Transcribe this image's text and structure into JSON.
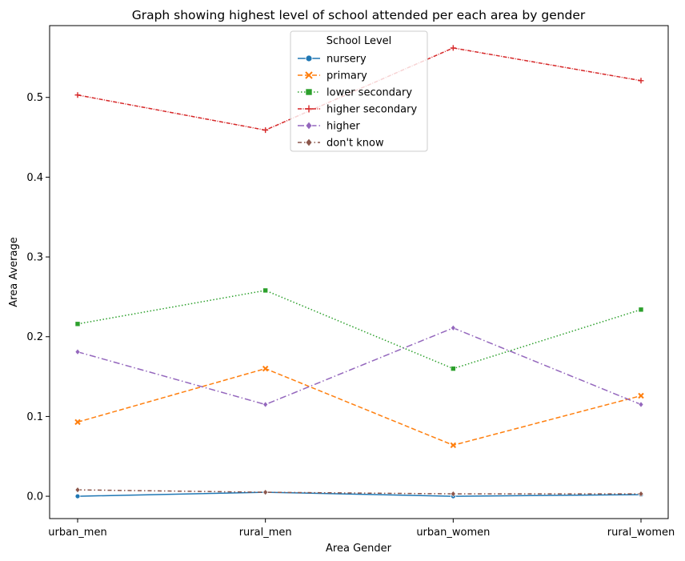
{
  "chart_data": {
    "type": "line",
    "title": "Graph showing highest level of school attended per each area by gender",
    "xlabel": "Area Gender",
    "ylabel": "Area Average",
    "categories": [
      "urban_men",
      "rural_men",
      "urban_women",
      "rural_women"
    ],
    "ylim": [
      -0.028,
      0.59
    ],
    "yticks": [
      0.0,
      0.1,
      0.2,
      0.3,
      0.4,
      0.5
    ],
    "ytick_labels": [
      "0.0",
      "0.1",
      "0.2",
      "0.3",
      "0.4",
      "0.5"
    ],
    "grid": false,
    "legend": {
      "title": "School Level",
      "placement": "top-center"
    },
    "series": [
      {
        "name": "nursery",
        "values": [
          0.0,
          0.005,
          0.0,
          0.002
        ],
        "color": "#1f77b4",
        "marker": "circle",
        "dash": "solid"
      },
      {
        "name": "primary",
        "values": [
          0.093,
          0.16,
          0.064,
          0.126
        ],
        "color": "#ff7f0e",
        "marker": "x",
        "dash": "dashed"
      },
      {
        "name": "lower secondary",
        "values": [
          0.216,
          0.258,
          0.16,
          0.234
        ],
        "color": "#2ca02c",
        "marker": "square",
        "dash": "dotted"
      },
      {
        "name": "higher secondary",
        "values": [
          0.503,
          0.459,
          0.562,
          0.521
        ],
        "color": "#d62728",
        "marker": "plus",
        "dash": "dashdot-fine"
      },
      {
        "name": "higher",
        "values": [
          0.181,
          0.115,
          0.211,
          0.115
        ],
        "color": "#9467bd",
        "marker": "diamond",
        "dash": "dashdot"
      },
      {
        "name": "don't know",
        "values": [
          0.008,
          0.005,
          0.003,
          0.003
        ],
        "color": "#8c564b",
        "marker": "diamond",
        "dash": "dashdot-long"
      }
    ]
  }
}
